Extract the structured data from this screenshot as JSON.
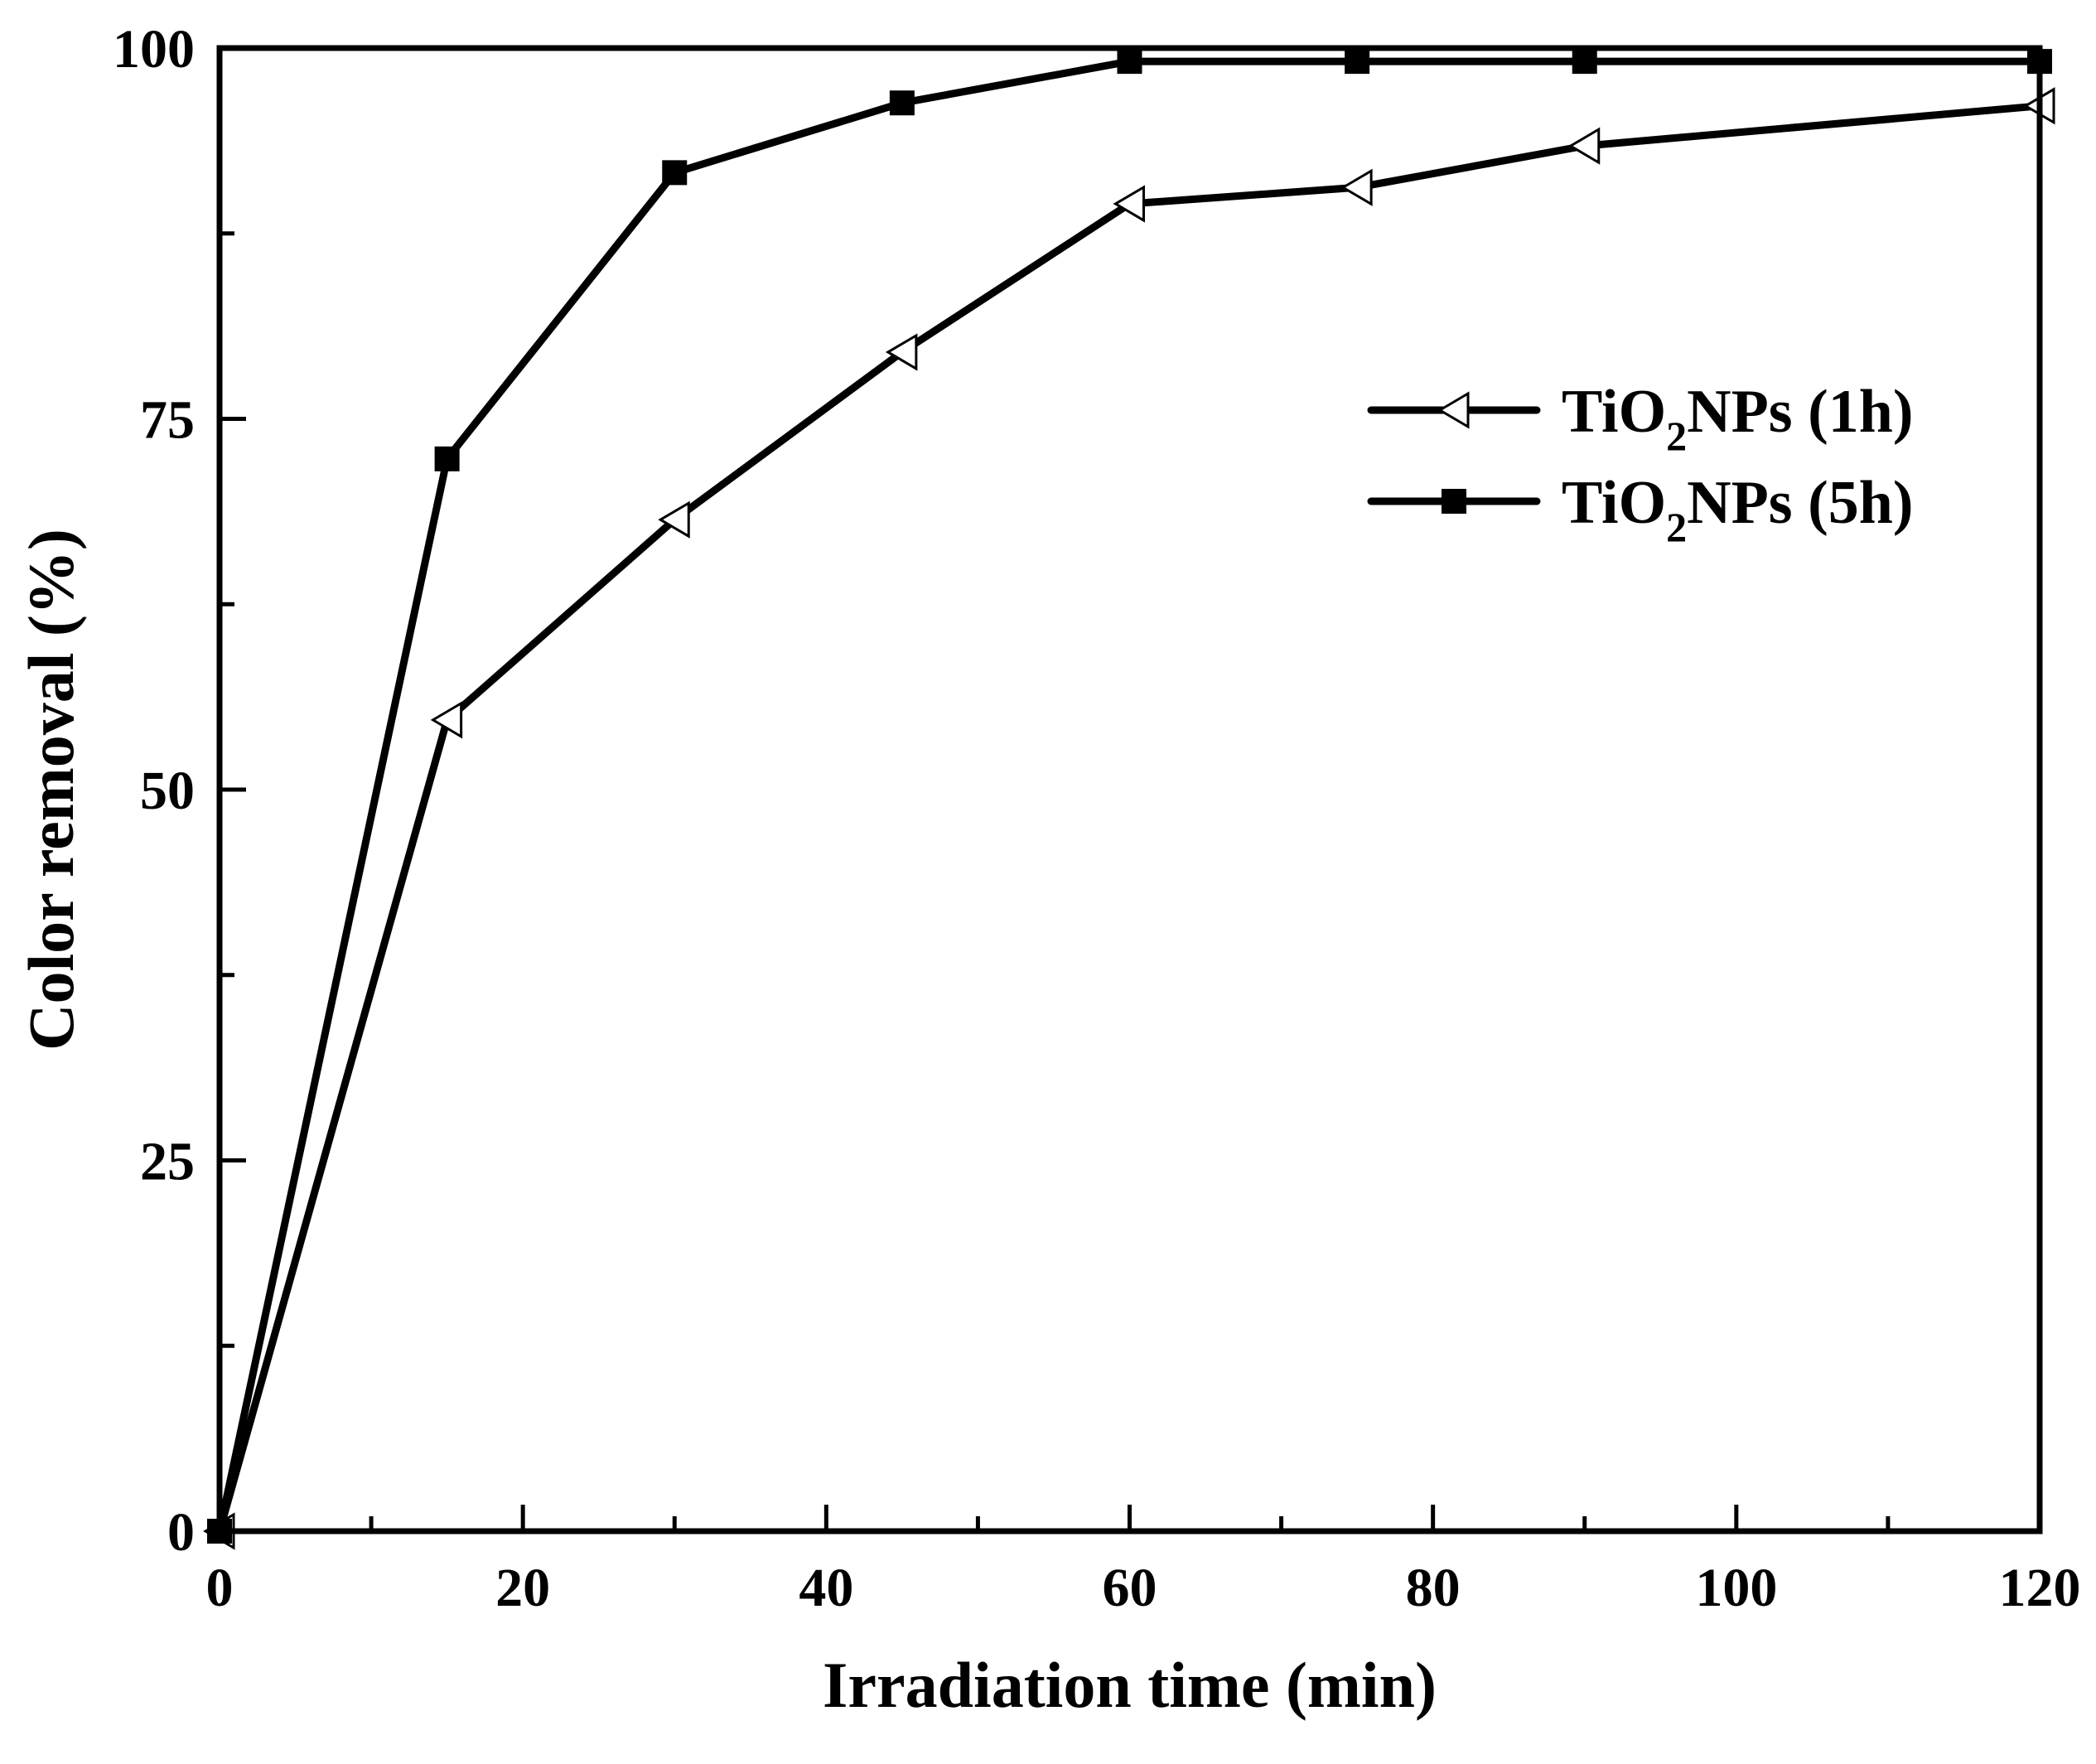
{
  "chart_data": {
    "type": "line",
    "title": "",
    "xlabel": "Irradiation time (min)",
    "ylabel": "Color removal  (%)",
    "xlim": [
      0,
      120
    ],
    "ylim": [
      0,
      100
    ],
    "x_ticks": [
      "0",
      "20",
      "40",
      "60",
      "80",
      "100",
      "120"
    ],
    "y_ticks": [
      "0",
      "25",
      "50",
      "75",
      "100"
    ],
    "grid": false,
    "legend_position": "top-right",
    "series": [
      {
        "name": "TiO2NPs (1h)",
        "label_parts": {
          "pre": "TiO",
          "sub": "2",
          "post": "NPs (1h)"
        },
        "marker": "open-left-triangle",
        "color": "#000000",
        "x": [
          0,
          15,
          30,
          45,
          60,
          75,
          90,
          120
        ],
        "y": [
          0,
          54.7,
          68.2,
          79.5,
          89.5,
          90.6,
          93.4,
          96.1
        ]
      },
      {
        "name": "TiO2NPs (5h)",
        "label_parts": {
          "pre": "TiO",
          "sub": "2",
          "post": "NPs (5h)"
        },
        "marker": "filled-square",
        "color": "#000000",
        "x": [
          0,
          15,
          30,
          45,
          60,
          75,
          90,
          120
        ],
        "y": [
          0,
          72.3,
          91.6,
          96.3,
          99.1,
          99.1,
          99.1,
          99.1
        ]
      }
    ]
  }
}
